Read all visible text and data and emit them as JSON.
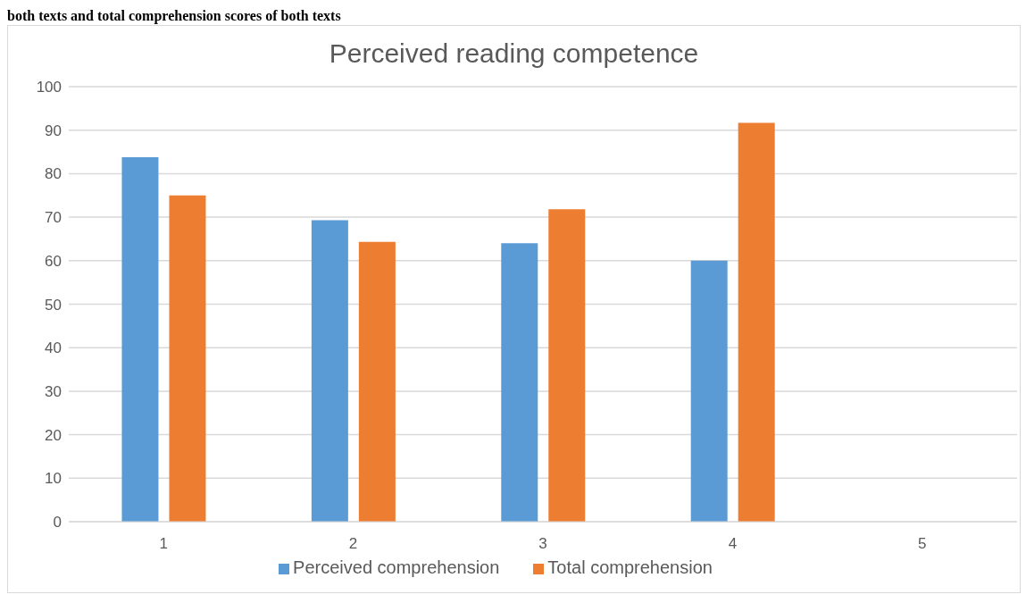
{
  "chart_data": {
    "type": "bar",
    "title": "Perceived reading competence",
    "annotations": [
      "both texts and total comprehension scores of both texts"
    ],
    "categories": [
      "1",
      "2",
      "3",
      "4",
      "5"
    ],
    "series": [
      {
        "name": "Perceived comprehension",
        "color": "#5b9bd5",
        "values": [
          83.8,
          69.3,
          64,
          60,
          null
        ]
      },
      {
        "name": "Total comprehension",
        "color": "#ed7d31",
        "values": [
          75,
          64.3,
          71.8,
          91.7,
          null
        ]
      }
    ],
    "ylim": [
      0,
      100
    ],
    "yticks": [
      0,
      10,
      20,
      30,
      40,
      50,
      60,
      70,
      80,
      90,
      100
    ],
    "grid": "y",
    "legend": "bottom"
  }
}
